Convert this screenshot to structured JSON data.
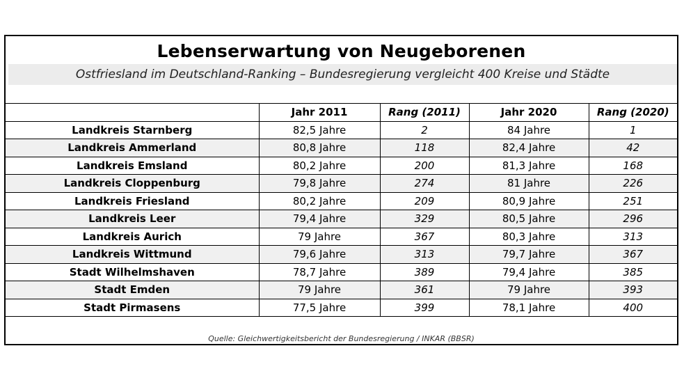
{
  "title": "Lebenserwartung von Neugeborenen",
  "subtitle": "Ostfriesland im Deutschland-Ranking – Bundesregierung vergleicht 400 Kreise und Städte",
  "table": {
    "headers": [
      "",
      "Jahr 2011",
      "Rang (2011)",
      "Jahr 2020",
      "Rang (2020)"
    ],
    "rows": [
      [
        "Landkreis Starnberg",
        "82,5 Jahre",
        "2",
        "84 Jahre",
        "1"
      ],
      [
        "Landkreis Ammerland",
        "80,8 Jahre",
        "118",
        "82,4 Jahre",
        "42"
      ],
      [
        "Landkreis Emsland",
        "80,2 Jahre",
        "200",
        "81,3 Jahre",
        "168"
      ],
      [
        "Landkreis Cloppenburg",
        "79,8 Jahre",
        "274",
        "81 Jahre",
        "226"
      ],
      [
        "Landkreis Friesland",
        "80,2 Jahre",
        "209",
        "80,9 Jahre",
        "251"
      ],
      [
        "Landkreis Leer",
        "79,4 Jahre",
        "329",
        "80,5 Jahre",
        "296"
      ],
      [
        "Landkreis Aurich",
        "79 Jahre",
        "367",
        "80,3 Jahre",
        "313"
      ],
      [
        "Landkreis Wittmund",
        "79,6 Jahre",
        "313",
        "79,7 Jahre",
        "367"
      ],
      [
        "Stadt Wilhelmshaven",
        "78,7 Jahre",
        "389",
        "79,4 Jahre",
        "385"
      ],
      [
        "Stadt Emden",
        "79 Jahre",
        "361",
        "79 Jahre",
        "393"
      ],
      [
        "Stadt Pirmasens",
        "77,5 Jahre",
        "399",
        "78,1 Jahre",
        "400"
      ]
    ]
  },
  "source": "Quelle: Gleichwertigkeitsbericht der Bundesregierung / INKAR (BBSR)"
}
